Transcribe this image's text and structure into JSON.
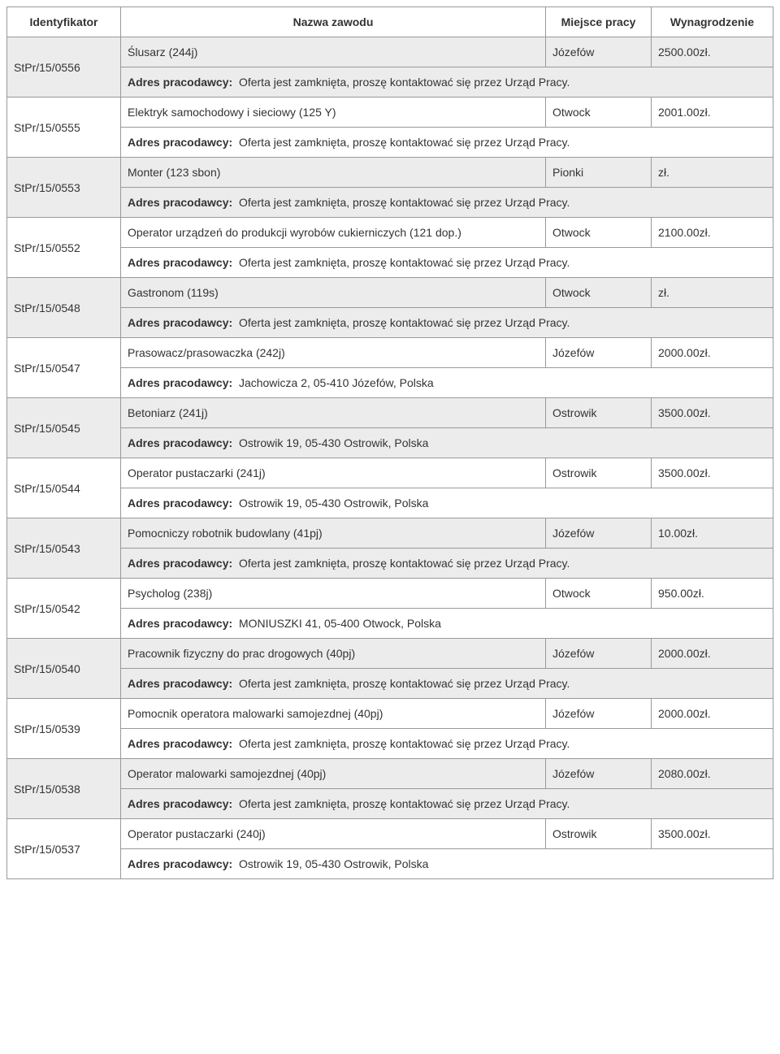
{
  "headers": {
    "id": "Identyfikator",
    "job": "Nazwa zawodu",
    "place": "Miejsce pracy",
    "salary": "Wynagrodzenie"
  },
  "addr_label": "Adres pracodawcy:",
  "closed_text": "Oferta jest zamknięta, proszę kontaktować się przez Urząd Pracy.",
  "rows": [
    {
      "id": "StPr/15/0556",
      "job": "Ślusarz (244j)",
      "place": "Józefów",
      "salary": "2500.00zł.",
      "addr": "__closed__",
      "shaded": true
    },
    {
      "id": "StPr/15/0555",
      "job": "Elektryk samochodowy i sieciowy (125 Y)",
      "place": "Otwock",
      "salary": "2001.00zł.",
      "addr": "__closed__",
      "shaded": false
    },
    {
      "id": "StPr/15/0553",
      "job": "Monter (123 sbon)",
      "place": "Pionki",
      "salary": "zł.",
      "addr": "__closed__",
      "shaded": true
    },
    {
      "id": "StPr/15/0552",
      "job": "Operator urządzeń do produkcji wyrobów cukierniczych (121 dop.)",
      "place": "Otwock",
      "salary": "2100.00zł.",
      "addr": "__closed__",
      "shaded": false
    },
    {
      "id": "StPr/15/0548",
      "job": "Gastronom (119s)",
      "place": "Otwock",
      "salary": "zł.",
      "addr": "__closed__",
      "shaded": true
    },
    {
      "id": "StPr/15/0547",
      "job": "Prasowacz/prasowaczka (242j)",
      "place": "Józefów",
      "salary": "2000.00zł.",
      "addr": "Jachowicza 2, 05-410 Józefów, Polska",
      "shaded": false
    },
    {
      "id": "StPr/15/0545",
      "job": "Betoniarz (241j)",
      "place": "Ostrowik",
      "salary": "3500.00zł.",
      "addr": "Ostrowik 19, 05-430 Ostrowik, Polska",
      "shaded": true
    },
    {
      "id": "StPr/15/0544",
      "job": "Operator pustaczarki (241j)",
      "place": "Ostrowik",
      "salary": "3500.00zł.",
      "addr": "Ostrowik 19, 05-430 Ostrowik, Polska",
      "shaded": false
    },
    {
      "id": "StPr/15/0543",
      "job": "Pomocniczy robotnik budowlany (41pj)",
      "place": "Józefów",
      "salary": "10.00zł.",
      "addr": "__closed__",
      "shaded": true
    },
    {
      "id": "StPr/15/0542",
      "job": "Psycholog (238j)",
      "place": "Otwock",
      "salary": "950.00zł.",
      "addr": "MONIUSZKI 41, 05-400 Otwock, Polska",
      "shaded": false
    },
    {
      "id": "StPr/15/0540",
      "job": "Pracownik fizyczny do prac drogowych (40pj)",
      "place": "Józefów",
      "salary": "2000.00zł.",
      "addr": "__closed__",
      "shaded": true
    },
    {
      "id": "StPr/15/0539",
      "job": "Pomocnik operatora malowarki samojezdnej (40pj)",
      "place": "Józefów",
      "salary": "2000.00zł.",
      "addr": "__closed__",
      "shaded": false
    },
    {
      "id": "StPr/15/0538",
      "job": "Operator malowarki samojezdnej (40pj)",
      "place": "Józefów",
      "salary": "2080.00zł.",
      "addr": "__closed__",
      "shaded": true
    },
    {
      "id": "StPr/15/0537",
      "job": "Operator pustaczarki (240j)",
      "place": "Ostrowik",
      "salary": "3500.00zł.",
      "addr": "Ostrowik 19, 05-430 Ostrowik, Polska",
      "shaded": false
    }
  ]
}
